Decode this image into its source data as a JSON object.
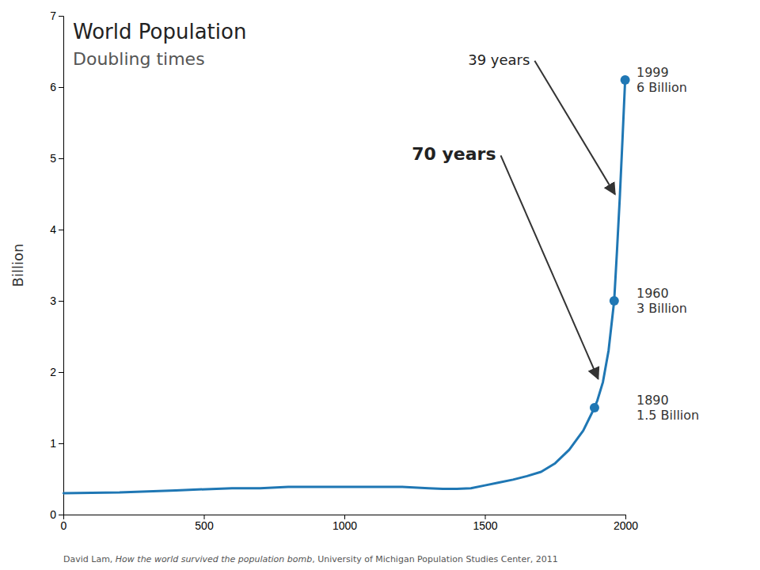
{
  "chart_data": {
    "type": "line",
    "title": "World Population",
    "subtitle": "Doubling times",
    "ylabel": "Billion",
    "x": [
      1,
      200,
      400,
      600,
      700,
      800,
      900,
      1000,
      1100,
      1200,
      1300,
      1350,
      1400,
      1450,
      1500,
      1550,
      1600,
      1650,
      1700,
      1750,
      1800,
      1850,
      1890,
      1900,
      1920,
      1940,
      1960,
      1970,
      1980,
      1990,
      1999
    ],
    "values": [
      0.3,
      0.31,
      0.34,
      0.37,
      0.37,
      0.39,
      0.39,
      0.39,
      0.39,
      0.39,
      0.37,
      0.36,
      0.36,
      0.37,
      0.41,
      0.45,
      0.49,
      0.54,
      0.6,
      0.72,
      0.91,
      1.18,
      1.5,
      1.6,
      1.86,
      2.3,
      3.0,
      3.7,
      4.45,
      5.3,
      6.1
    ],
    "markers": {
      "x": [
        1890,
        1960,
        1999
      ],
      "values": [
        1.5,
        3.0,
        6.1
      ],
      "labels": [
        "1890\n1.5 Billion",
        "1960\n3 Billion",
        "1999\n6 Billion"
      ]
    },
    "annotations": [
      {
        "text": "39 years"
      },
      {
        "text": "70 years"
      }
    ],
    "caption": [
      "David Lam, ",
      "How the world survived the population bomb",
      ", University of Michigan Population Studies Center, 2011"
    ],
    "xlim": [
      0,
      2000
    ],
    "ylim": [
      0,
      7
    ],
    "xticks": [
      0,
      500,
      1000,
      1500,
      2000
    ],
    "yticks": [
      0,
      1,
      2,
      3,
      4,
      5,
      6,
      7
    ],
    "grid": false
  }
}
